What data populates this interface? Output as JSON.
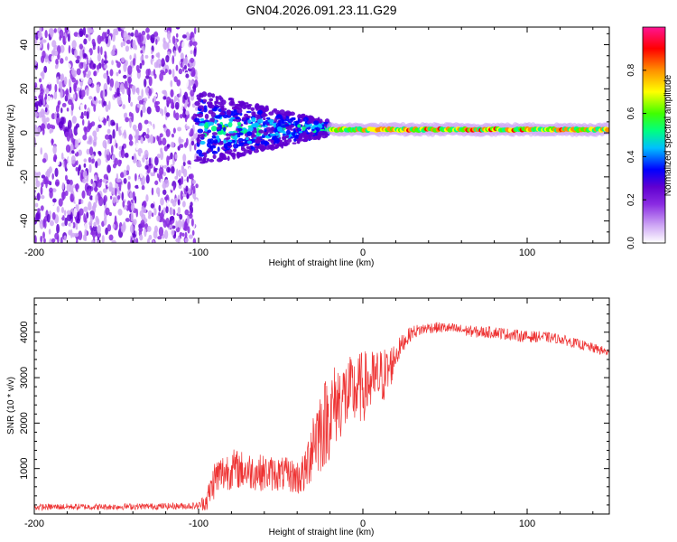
{
  "title": "GN04.2026.091.23.11.G29",
  "chart_data": [
    {
      "type": "heatmap",
      "xlabel": "Height of straight line (km)",
      "ylabel": "Frequency (Hz)",
      "xlim": [
        -200,
        150
      ],
      "ylim": [
        -50,
        48
      ],
      "xticks": [
        -200,
        -100,
        0,
        100
      ],
      "yticks": [
        -40,
        -20,
        0,
        20,
        40
      ],
      "colorbar": {
        "label": "Normalized spectral amplitude",
        "range": [
          0.0,
          1.0
        ],
        "ticks": [
          0.0,
          0.2,
          0.4,
          0.6,
          0.8
        ],
        "colors": [
          "#ffffff",
          "#cfa8f5",
          "#8a2be2",
          "#6000d0",
          "#0000ff",
          "#00bfff",
          "#00ff80",
          "#40ff00",
          "#ffff00",
          "#ff9000",
          "#ff0000",
          "#ff1493"
        ]
      },
      "regions": [
        {
          "x": [
            -200,
            -101
          ],
          "description": "noise",
          "freq_range": [
            -50,
            48
          ],
          "amplitude": 0.1
        },
        {
          "x": [
            -101,
            -20
          ],
          "description": "scattered signal",
          "freq_range": [
            -12,
            18
          ],
          "amplitude": 0.35
        },
        {
          "x": [
            -20,
            150
          ],
          "description": "coherent tone",
          "freq_center": 1.5,
          "amplitude": 0.75
        }
      ]
    },
    {
      "type": "line",
      "xlabel": "Height of straight line (km)",
      "ylabel": "SNR (10 * v/v)",
      "xlim": [
        -200,
        150
      ],
      "ylim": [
        0,
        4750
      ],
      "xticks": [
        -200,
        -100,
        0,
        100
      ],
      "yticks": [
        1000,
        2000,
        3000,
        4000
      ],
      "series": [
        {
          "name": "SNR",
          "color": "#ee3333",
          "x": [
            -200,
            -180,
            -160,
            -140,
            -120,
            -100,
            -95,
            -90,
            -80,
            -70,
            -60,
            -50,
            -45,
            -40,
            -35,
            -30,
            -25,
            -20,
            -15,
            -10,
            -5,
            0,
            5,
            10,
            15,
            20,
            25,
            30,
            40,
            50,
            60,
            70,
            80,
            90,
            100,
            110,
            120,
            130,
            140,
            150
          ],
          "y": [
            150,
            160,
            155,
            165,
            170,
            180,
            300,
            800,
            1000,
            950,
            900,
            880,
            860,
            800,
            900,
            1700,
            1900,
            2200,
            2500,
            2600,
            2700,
            2800,
            2900,
            3000,
            3100,
            3500,
            3800,
            4000,
            4100,
            4100,
            4050,
            4000,
            4000,
            3950,
            3900,
            3900,
            3850,
            3750,
            3650,
            3550
          ],
          "noise": [
            70,
            70,
            70,
            70,
            70,
            80,
            250,
            450,
            450,
            420,
            400,
            380,
            380,
            400,
            500,
            900,
            1000,
            1000,
            900,
            850,
            800,
            800,
            700,
            650,
            600,
            300,
            200,
            150,
            120,
            120,
            120,
            130,
            130,
            130,
            130,
            120,
            110,
            110,
            110,
            100
          ]
        }
      ]
    }
  ]
}
